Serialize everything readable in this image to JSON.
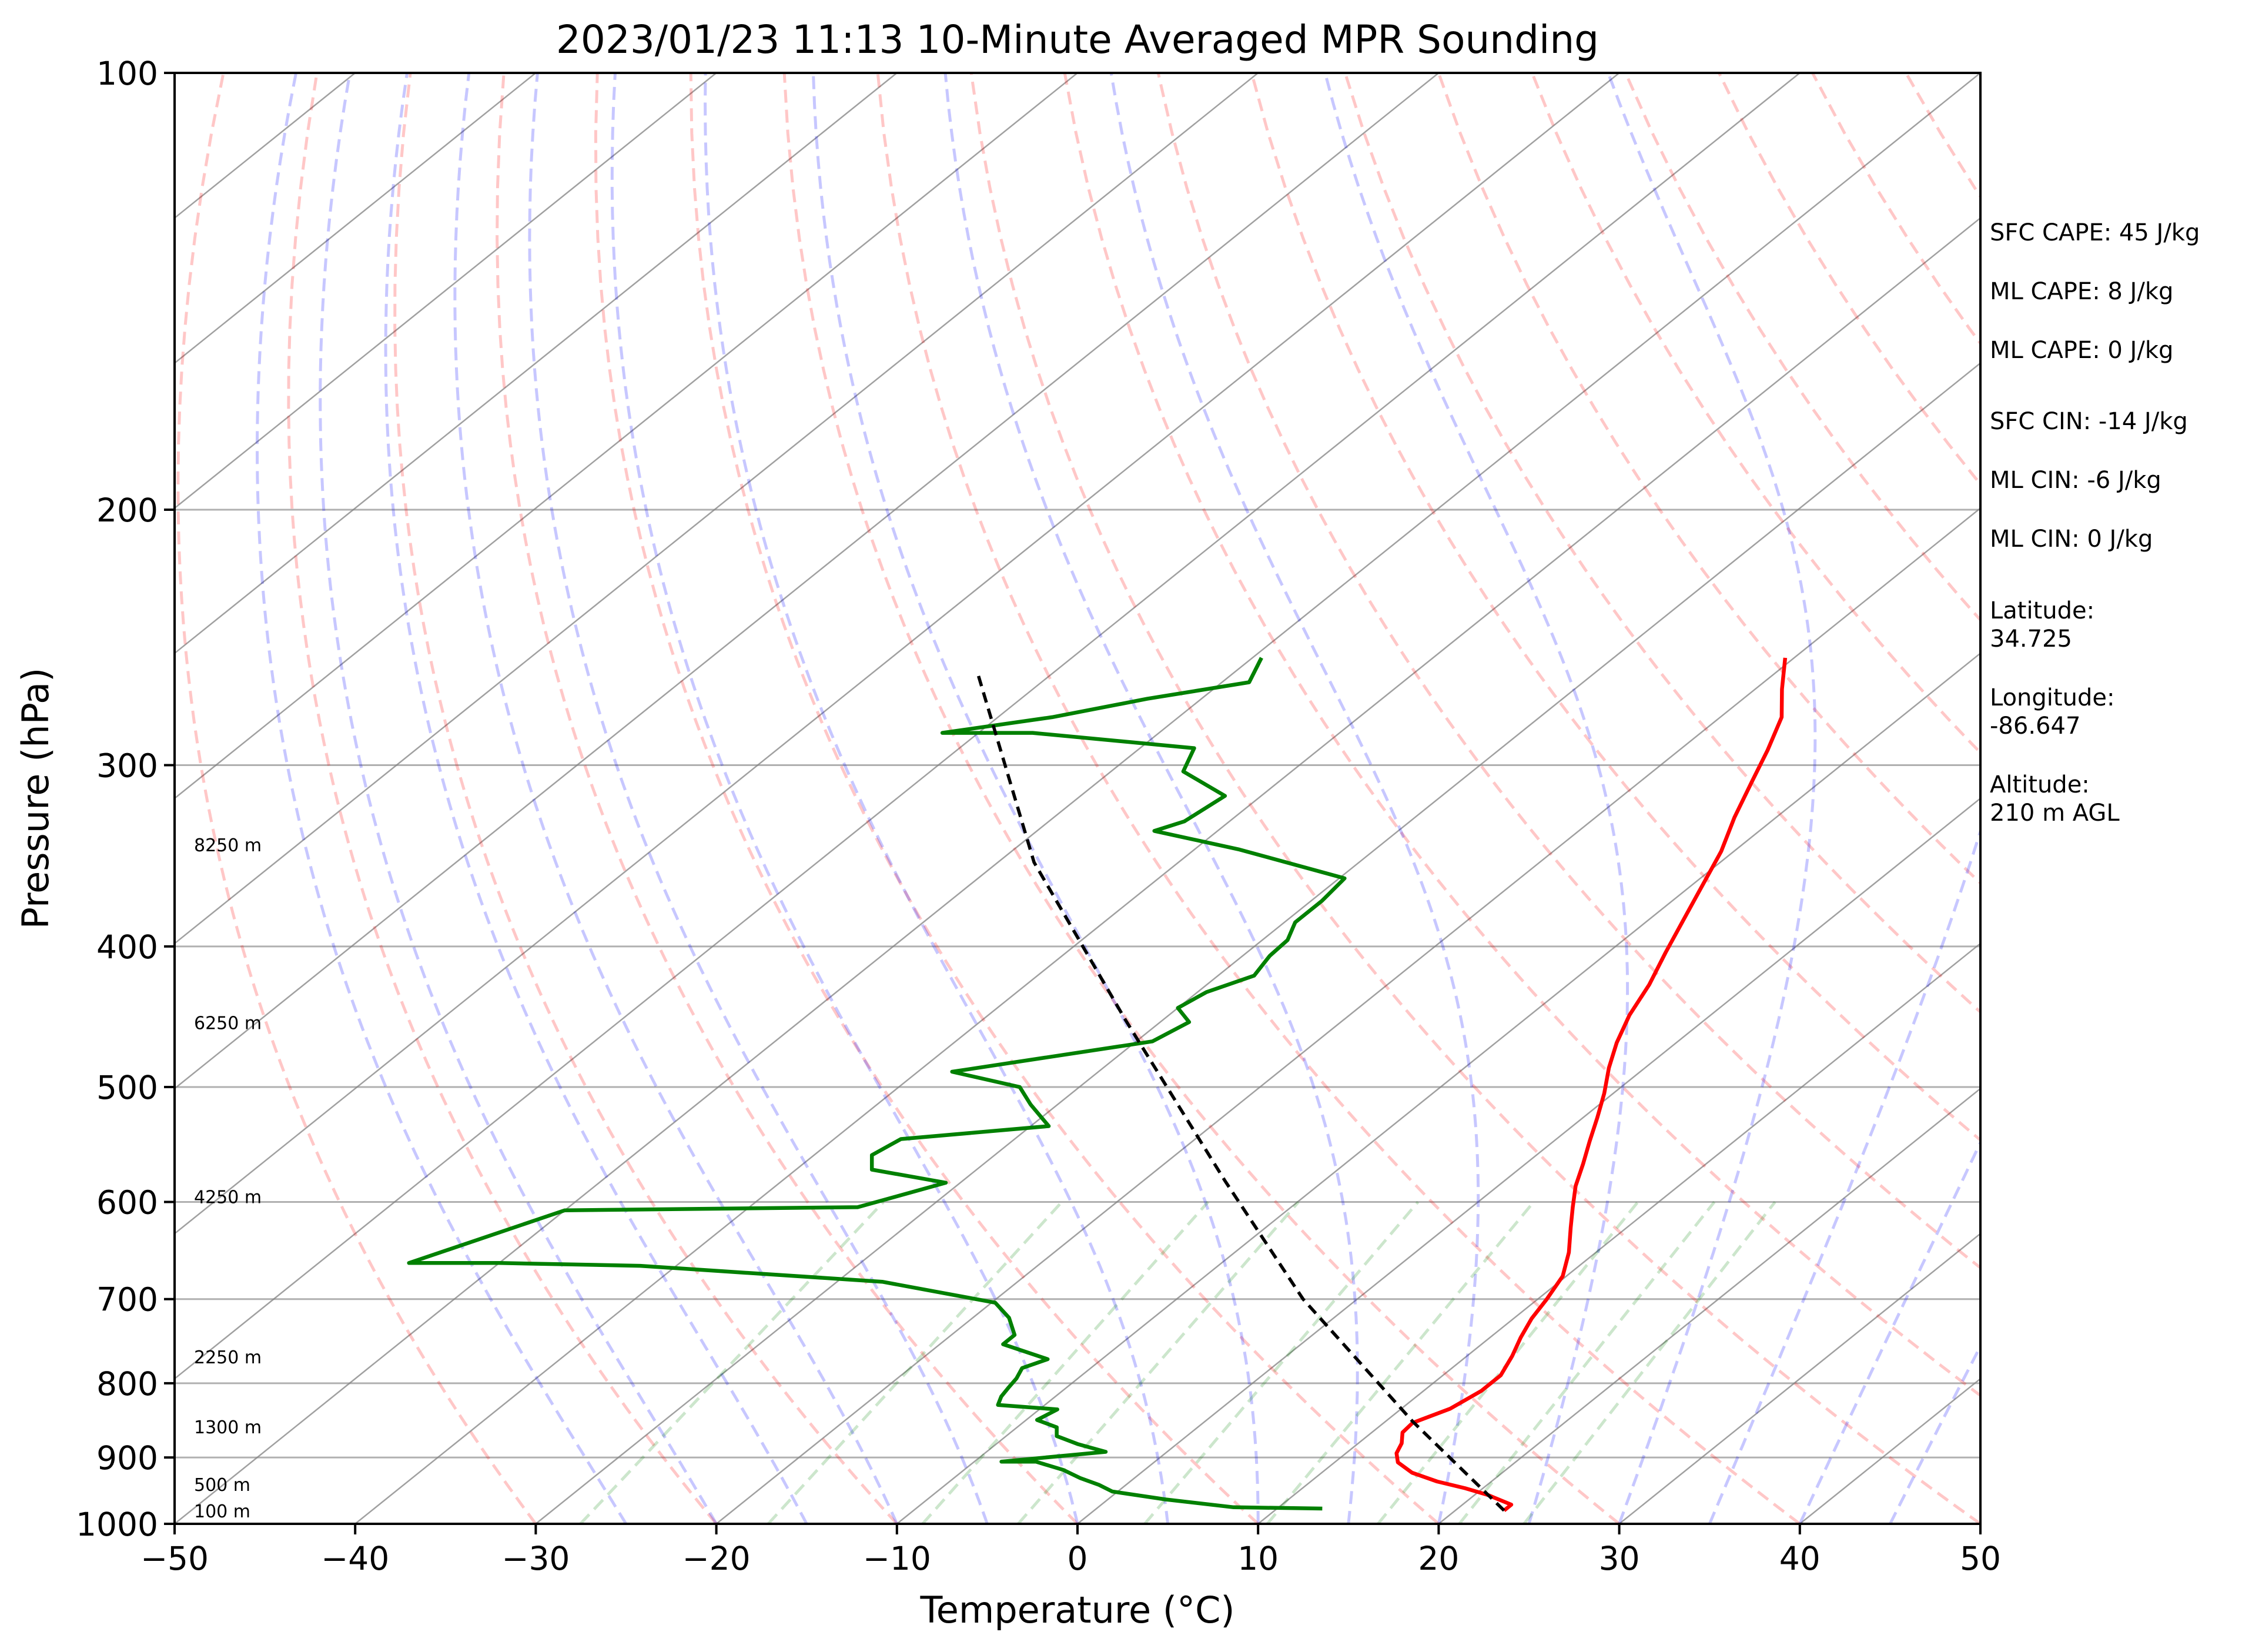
{
  "chart_data": {
    "type": "line",
    "chart_kind": "skew-T log-P",
    "title": "2023/01/23 11:13 10-Minute Averaged MPR Sounding",
    "xlabel": "Temperature (°C)",
    "ylabel": "Pressure (hPa)",
    "xlim": [
      -50,
      50
    ],
    "ylim": [
      1000,
      100
    ],
    "y_scale": "log",
    "x_ticks": [
      "−50",
      "−40",
      "−30",
      "−20",
      "−10",
      "0",
      "10",
      "20",
      "30",
      "40",
      "50"
    ],
    "y_ticks": [
      "100",
      "200",
      "300",
      "400",
      "500",
      "600",
      "700",
      "800",
      "900",
      "1000"
    ],
    "grid": "horizontal isobars",
    "series": [
      {
        "role": "temperature",
        "color": "#ff0000",
        "points": [
          {
            "t": 22.7,
            "p": 979
          },
          {
            "t": 22.7,
            "p": 970
          },
          {
            "t": 20.7,
            "p": 955
          },
          {
            "t": 19.0,
            "p": 945
          },
          {
            "t": 17.0,
            "p": 935
          },
          {
            "t": 15.0,
            "p": 922
          },
          {
            "t": 13.5,
            "p": 907
          },
          {
            "t": 12.8,
            "p": 894
          },
          {
            "t": 12.4,
            "p": 880
          },
          {
            "t": 11.7,
            "p": 865
          },
          {
            "t": 11.6,
            "p": 852
          },
          {
            "t": 12.7,
            "p": 833
          },
          {
            "t": 13.2,
            "p": 810
          },
          {
            "t": 13.2,
            "p": 790
          },
          {
            "t": 12.5,
            "p": 766
          },
          {
            "t": 11.7,
            "p": 744
          },
          {
            "t": 11.0,
            "p": 722
          },
          {
            "t": 10.5,
            "p": 700
          },
          {
            "t": 9.8,
            "p": 675
          },
          {
            "t": 8.5,
            "p": 650
          },
          {
            "t": 6.9,
            "p": 625
          },
          {
            "t": 5.6,
            "p": 605
          },
          {
            "t": 4.3,
            "p": 585
          },
          {
            "t": 3.2,
            "p": 565
          },
          {
            "t": 2.0,
            "p": 545
          },
          {
            "t": 0.8,
            "p": 525
          },
          {
            "t": -0.5,
            "p": 505
          },
          {
            "t": -2.0,
            "p": 485
          },
          {
            "t": -3.3,
            "p": 466
          },
          {
            "t": -4.5,
            "p": 446
          },
          {
            "t": -5.5,
            "p": 425
          },
          {
            "t": -6.8,
            "p": 404
          },
          {
            "t": -8.1,
            "p": 383
          },
          {
            "t": -9.4,
            "p": 363
          },
          {
            "t": -10.7,
            "p": 344
          },
          {
            "t": -12.3,
            "p": 326
          },
          {
            "t": -13.8,
            "p": 308
          },
          {
            "t": -15.1,
            "p": 293
          },
          {
            "t": -16.6,
            "p": 278
          },
          {
            "t": -18.5,
            "p": 266
          },
          {
            "t": -20.5,
            "p": 253
          }
        ]
      },
      {
        "role": "dewpoint",
        "color": "#008000",
        "points": [
          {
            "t": 12.5,
            "p": 976
          },
          {
            "t": 7.5,
            "p": 974
          },
          {
            "t": 3.2,
            "p": 962
          },
          {
            "t": -0.3,
            "p": 950
          },
          {
            "t": -1.5,
            "p": 940
          },
          {
            "t": -3.0,
            "p": 930
          },
          {
            "t": -4.5,
            "p": 918
          },
          {
            "t": -6.6,
            "p": 906
          },
          {
            "t": -8.5,
            "p": 906
          },
          {
            "t": -3.4,
            "p": 892
          },
          {
            "t": -5.5,
            "p": 881
          },
          {
            "t": -7.2,
            "p": 870
          },
          {
            "t": -7.8,
            "p": 858
          },
          {
            "t": -9.4,
            "p": 848
          },
          {
            "t": -9.0,
            "p": 834
          },
          {
            "t": -12.6,
            "p": 828
          },
          {
            "t": -13.0,
            "p": 817
          },
          {
            "t": -13.2,
            "p": 806
          },
          {
            "t": -13.4,
            "p": 794
          },
          {
            "t": -13.8,
            "p": 781
          },
          {
            "t": -13.0,
            "p": 770
          },
          {
            "t": -16.5,
            "p": 752
          },
          {
            "t": -16.5,
            "p": 741
          },
          {
            "t": -18.0,
            "p": 721
          },
          {
            "t": -19.8,
            "p": 704
          },
          {
            "t": -27.5,
            "p": 681
          },
          {
            "t": -42.0,
            "p": 664
          },
          {
            "t": -50.0,
            "p": 661
          },
          {
            "t": -55.0,
            "p": 661
          },
          {
            "t": -50.0,
            "p": 608
          },
          {
            "t": -34.0,
            "p": 605
          },
          {
            "t": -30.8,
            "p": 582
          },
          {
            "t": -35.8,
            "p": 570
          },
          {
            "t": -36.8,
            "p": 557
          },
          {
            "t": -36.3,
            "p": 543
          },
          {
            "t": -29.0,
            "p": 532
          },
          {
            "t": -31.5,
            "p": 514
          },
          {
            "t": -33.3,
            "p": 500
          },
          {
            "t": -38.1,
            "p": 488
          },
          {
            "t": -29.1,
            "p": 465
          },
          {
            "t": -28.4,
            "p": 451
          },
          {
            "t": -30.0,
            "p": 441
          },
          {
            "t": -29.5,
            "p": 430
          },
          {
            "t": -28.0,
            "p": 419
          },
          {
            "t": -28.5,
            "p": 406
          },
          {
            "t": -28.6,
            "p": 396
          },
          {
            "t": -29.4,
            "p": 385
          },
          {
            "t": -29.4,
            "p": 372
          },
          {
            "t": -29.7,
            "p": 359
          },
          {
            "t": -37.5,
            "p": 343
          },
          {
            "t": -43.5,
            "p": 333
          },
          {
            "t": -42.5,
            "p": 328
          },
          {
            "t": -42.0,
            "p": 315
          },
          {
            "t": -46.0,
            "p": 303
          },
          {
            "t": -47.0,
            "p": 292
          },
          {
            "t": -57.0,
            "p": 285
          },
          {
            "t": -62.0,
            "p": 285
          },
          {
            "t": -57.0,
            "p": 278
          },
          {
            "t": -53.0,
            "p": 270
          },
          {
            "t": -48.5,
            "p": 263
          },
          {
            "t": -49.5,
            "p": 253
          }
        ]
      },
      {
        "role": "parcel",
        "color": "#000000",
        "style": "dashed",
        "points": [
          {
            "t": 22.7,
            "p": 979
          },
          {
            "t": 11.5,
            "p": 850
          },
          {
            "t": -3.0,
            "p": 700
          },
          {
            "t": -15.5,
            "p": 580
          },
          {
            "t": -32.0,
            "p": 450
          },
          {
            "t": -48.0,
            "p": 350
          },
          {
            "t": -64.0,
            "p": 260
          }
        ]
      }
    ],
    "height_labels": [
      {
        "label": "100 m",
        "p": 990
      },
      {
        "label": "500 m",
        "p": 949
      },
      {
        "label": "1300 m",
        "p": 866
      },
      {
        "label": "2250 m",
        "p": 775
      },
      {
        "label": "4250 m",
        "p": 601
      },
      {
        "label": "6250 m",
        "p": 456
      },
      {
        "label": "8250 m",
        "p": 344
      }
    ],
    "reference_lines": {
      "dry_adiabats": "#ff0000",
      "moist_adiabats": "#0000ff",
      "mixing_ratio": "#008000",
      "isotherms": "#808080"
    }
  },
  "stats": [
    "SFC CAPE: 45 J/kg",
    "ML CAPE: 8 J/kg",
    "ML CAPE: 0 J/kg",
    "SFC CIN: -14 J/kg",
    "ML CIN: -6 J/kg",
    "ML CIN: 0 J/kg"
  ],
  "location": {
    "latitude_label": "Latitude:",
    "latitude": "34.725",
    "longitude_label": "Longitude:",
    "longitude": "-86.647",
    "altitude_label": "Altitude:",
    "altitude": "210 m AGL"
  }
}
